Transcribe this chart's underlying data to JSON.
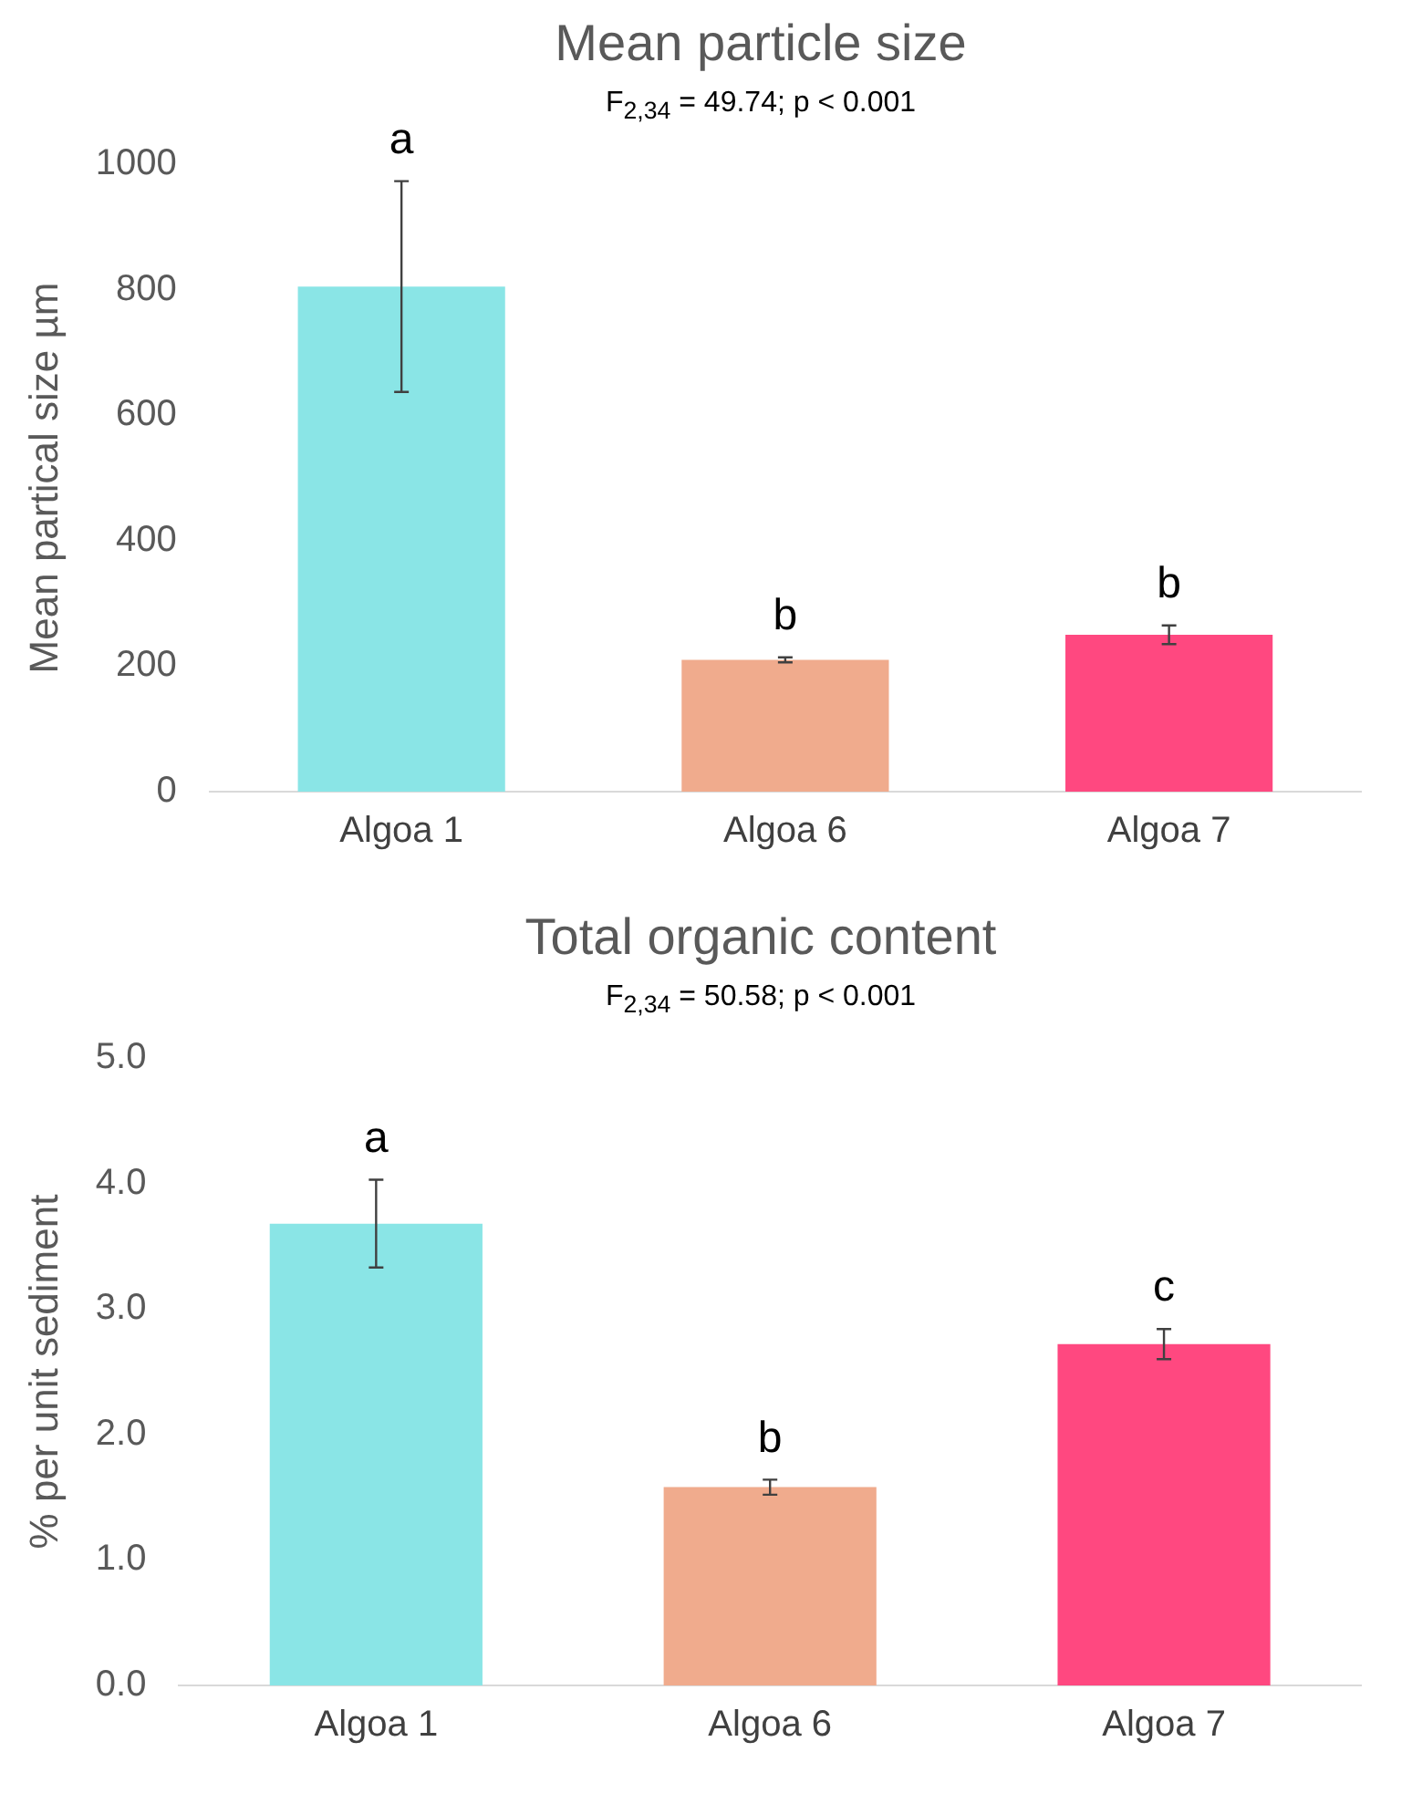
{
  "chart_data": [
    {
      "type": "bar",
      "title": "Mean particle size",
      "subtitle": "F$_{2,34}$ = 49.74; p < 0.001",
      "ylabel": "Mean partical size µm",
      "categories": [
        "Algoa 1",
        "Algoa 6",
        "Algoa 7"
      ],
      "values": [
        805,
        210,
        250
      ],
      "colors": [
        "#8ae5e6",
        "#f0ab8d",
        "#ff4880"
      ],
      "errors": [
        168,
        4,
        15
      ],
      "ylim": [
        0,
        1000
      ],
      "yticks": [
        0,
        200,
        400,
        600,
        800,
        1000
      ],
      "annotations": [
        {
          "text": "a",
          "x": "Algoa 1",
          "y": 973
        },
        {
          "text": "b",
          "x": "Algoa 6",
          "y": 214
        },
        {
          "text": "b",
          "x": "Algoa 7",
          "y": 265
        }
      ]
    },
    {
      "type": "bar",
      "title": "Total organic content",
      "subtitle": "F$_{2,34}$ = 50.58; p < 0.001",
      "ylabel": "% per unit sediment",
      "categories": [
        "Algoa 1",
        "Algoa 6",
        "Algoa 7"
      ],
      "values": [
        3.68,
        1.58,
        2.72
      ],
      "colors": [
        "#8ae5e6",
        "#f0ab8d",
        "#ff4880"
      ],
      "errors": [
        0.35,
        0.06,
        0.12
      ],
      "ylim": [
        0,
        5
      ],
      "yticks": [
        {
          "value": 0,
          "label": "0.0"
        },
        {
          "value": 1,
          "label": "1.0"
        },
        {
          "value": 2,
          "label": "2.0"
        },
        {
          "value": 3,
          "label": "3.0"
        },
        {
          "value": 4,
          "label": "4.0"
        },
        {
          "value": 5,
          "label": "5.0"
        }
      ],
      "annotations": [
        {
          "text": "a",
          "x": "Algoa 1",
          "y": 4.03
        },
        {
          "text": "b",
          "x": "Algoa 6",
          "y": 1.64
        },
        {
          "text": "c",
          "x": "Algoa 7",
          "y": 2.84
        }
      ]
    }
  ]
}
